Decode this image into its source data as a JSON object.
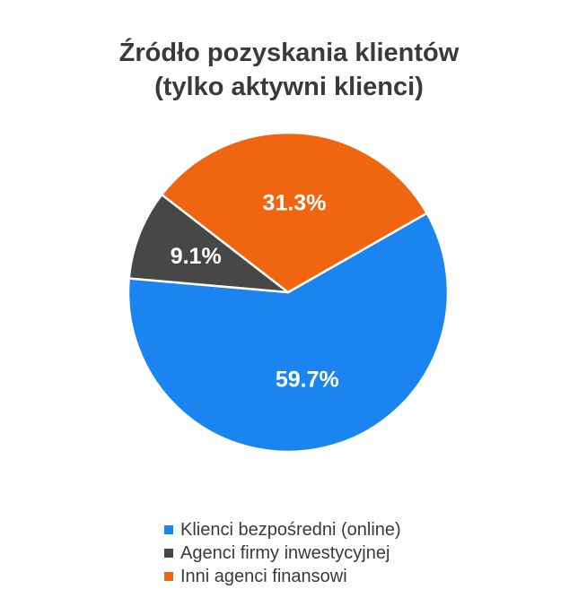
{
  "chart_data": {
    "type": "pie",
    "title_lines": [
      "Źródło pozyskania klientów",
      "(tylko aktywni klienci)"
    ],
    "slices": [
      {
        "label": "Klienci bezpośredni (online)",
        "value": 59.7,
        "value_label": "59.7%",
        "color": "#1a84f0"
      },
      {
        "label": "Agenci firmy inwestycyjnej",
        "value": 9.1,
        "value_label": "9.1%",
        "color": "#474747"
      },
      {
        "label": "Inni agenci finansowi",
        "value": 31.3,
        "value_label": "31.3%",
        "color": "#f0650f"
      }
    ],
    "legend_position": "bottom",
    "label_color": "#ffffff"
  }
}
